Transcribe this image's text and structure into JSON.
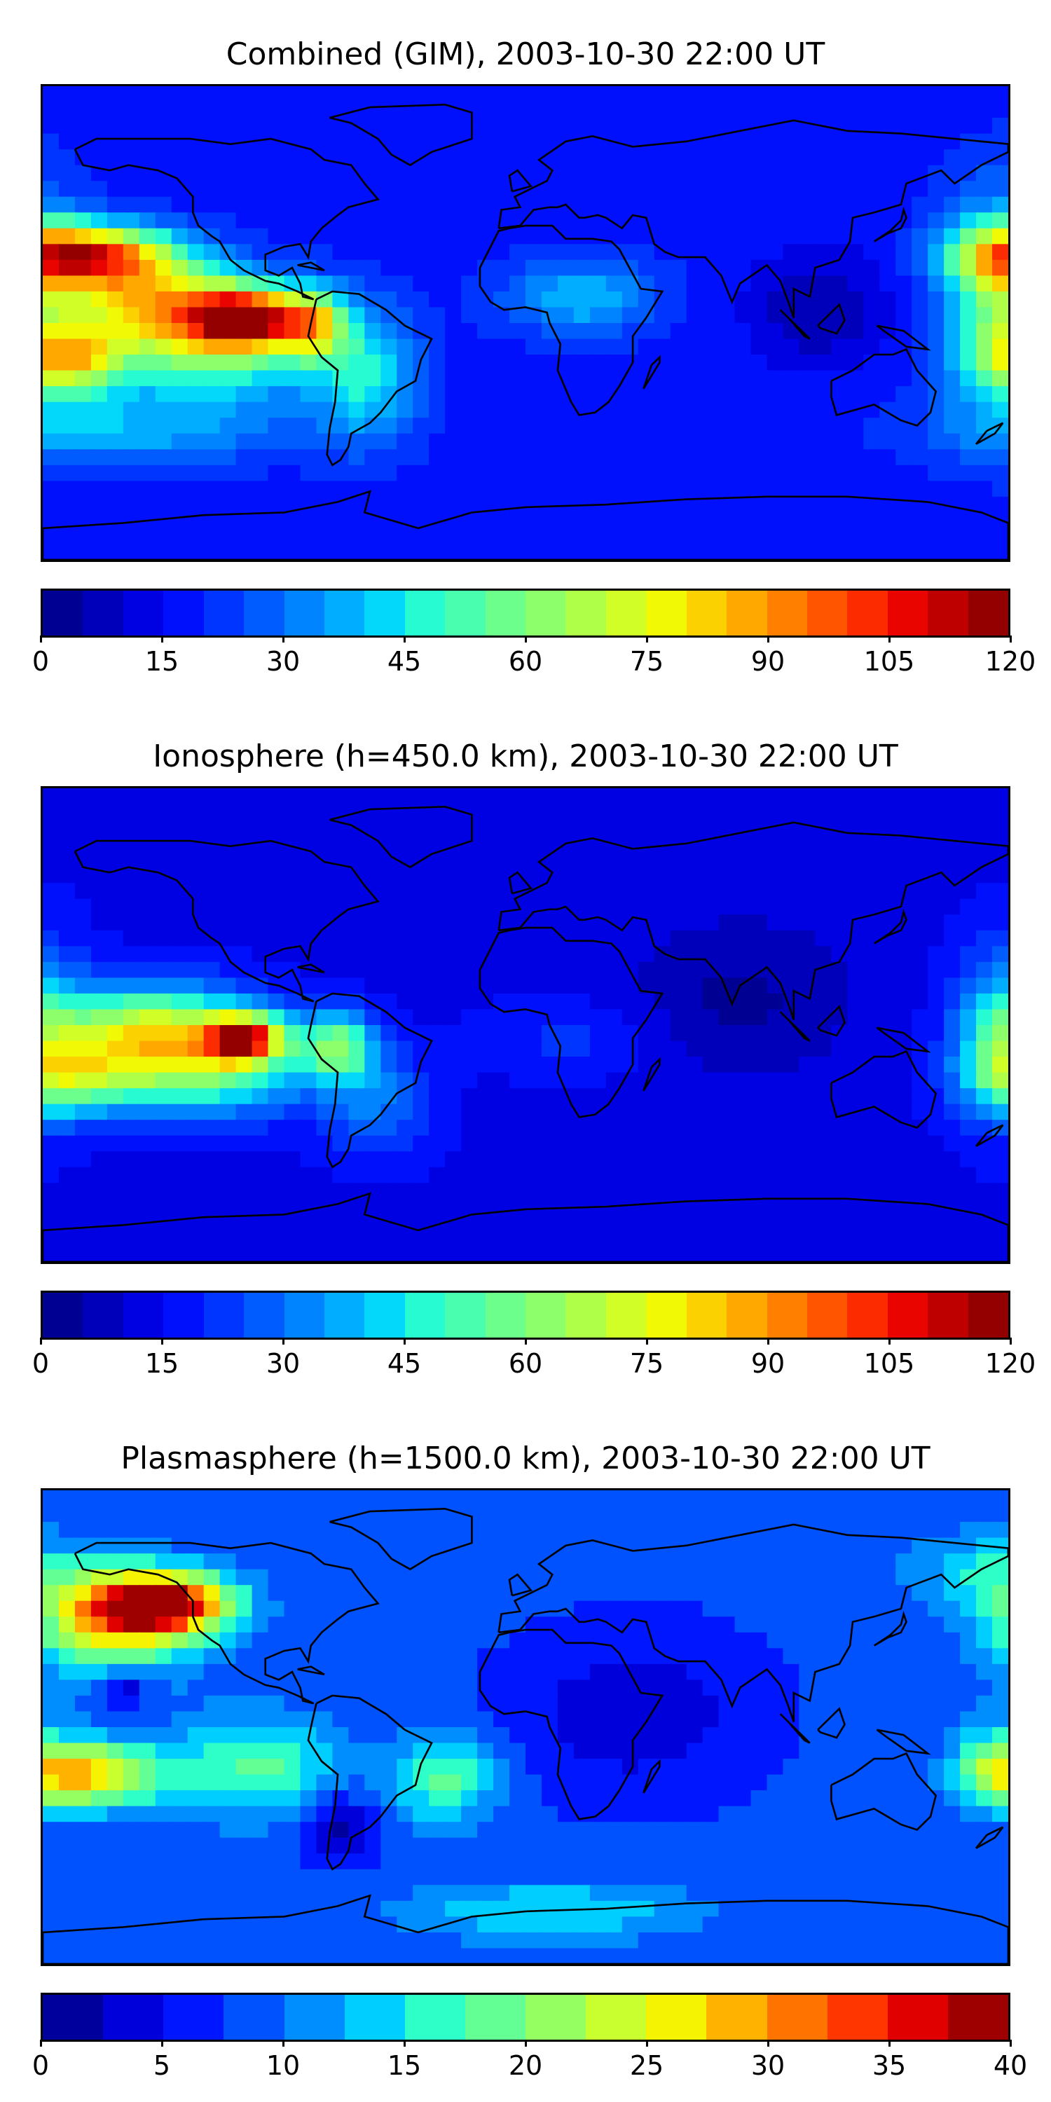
{
  "panels": [
    {
      "title": "Combined (GIM), 2003-10-30 22:00 UT",
      "colorbar": {
        "min": 0,
        "max": 120,
        "levels": 24,
        "ticks": [
          "0",
          "15",
          "30",
          "45",
          "60",
          "75",
          "90",
          "105",
          "120"
        ]
      },
      "field": {
        "background": 18,
        "blobs": [
          {
            "lon": -165,
            "lat": 26,
            "v": 98,
            "sx": 22,
            "sy": 8
          },
          {
            "lon": -140,
            "lat": 8,
            "v": 72,
            "sx": 25,
            "sy": 12
          },
          {
            "lon": -105,
            "lat": 2,
            "v": 95,
            "sx": 12,
            "sy": 7
          },
          {
            "lon": -115,
            "lat": -8,
            "v": 60,
            "sx": 25,
            "sy": 14
          },
          {
            "lon": -170,
            "lat": -14,
            "v": 70,
            "sx": 15,
            "sy": 9
          },
          {
            "lon": -80,
            "lat": 0,
            "v": 70,
            "sx": 9,
            "sy": 9
          },
          {
            "lon": -60,
            "lat": -20,
            "v": 45,
            "sx": 14,
            "sy": 18
          },
          {
            "lon": -150,
            "lat": -40,
            "v": 38,
            "sx": 40,
            "sy": 10
          },
          {
            "lon": 175,
            "lat": 10,
            "v": 48,
            "sx": 14,
            "sy": 28
          },
          {
            "lon": 110,
            "lat": 5,
            "v": 5,
            "sx": 18,
            "sy": 15
          },
          {
            "lon": 20,
            "lat": 10,
            "v": 40,
            "sx": 20,
            "sy": 10
          }
        ]
      }
    },
    {
      "title": "Ionosphere  (h=450.0 km), 2003-10-30 22:00 UT",
      "colorbar": {
        "min": 0,
        "max": 120,
        "levels": 24,
        "ticks": [
          "0",
          "15",
          "30",
          "45",
          "60",
          "75",
          "90",
          "105",
          "120"
        ]
      },
      "field": {
        "background": 14,
        "blobs": [
          {
            "lon": -140,
            "lat": -2,
            "v": 68,
            "sx": 26,
            "sy": 12
          },
          {
            "lon": -105,
            "lat": -5,
            "v": 95,
            "sx": 10,
            "sy": 6
          },
          {
            "lon": -120,
            "lat": -18,
            "v": 50,
            "sx": 28,
            "sy": 12
          },
          {
            "lon": -170,
            "lat": -20,
            "v": 50,
            "sx": 18,
            "sy": 10
          },
          {
            "lon": -70,
            "lat": -8,
            "v": 55,
            "sx": 10,
            "sy": 9
          },
          {
            "lon": -55,
            "lat": -30,
            "v": 30,
            "sx": 14,
            "sy": 14
          },
          {
            "lon": 178,
            "lat": -2,
            "v": 42,
            "sx": 12,
            "sy": 22
          },
          {
            "lon": 20,
            "lat": -5,
            "v": 22,
            "sx": 22,
            "sy": 10
          },
          {
            "lon": 80,
            "lat": 10,
            "v": 4,
            "sx": 30,
            "sy": 22
          }
        ]
      }
    },
    {
      "title": "Plasmasphere (h=1500.0 km), 2003-10-30 22:00 UT",
      "colorbar": {
        "min": 0,
        "max": 40,
        "levels": 16,
        "ticks": [
          "0",
          "5",
          "10",
          "15",
          "20",
          "25",
          "30",
          "35",
          "40"
        ]
      },
      "field": {
        "background": 8,
        "blobs": [
          {
            "lon": -135,
            "lat": 47,
            "v": 36,
            "sx": 18,
            "sy": 8
          },
          {
            "lon": -155,
            "lat": 40,
            "v": 25,
            "sx": 22,
            "sy": 14
          },
          {
            "lon": -165,
            "lat": -18,
            "v": 28,
            "sx": 20,
            "sy": 9
          },
          {
            "lon": -150,
            "lat": 15,
            "v": 1,
            "sx": 7,
            "sy": 7
          },
          {
            "lon": -70,
            "lat": -38,
            "v": 1,
            "sx": 10,
            "sy": 9
          },
          {
            "lon": -30,
            "lat": -20,
            "v": 18,
            "sx": 14,
            "sy": 12
          },
          {
            "lon": -100,
            "lat": -15,
            "v": 18,
            "sx": 22,
            "sy": 14
          },
          {
            "lon": 10,
            "lat": -70,
            "v": 15,
            "sx": 40,
            "sy": 8
          },
          {
            "lon": 175,
            "lat": -12,
            "v": 14,
            "sx": 10,
            "sy": 14
          },
          {
            "lon": 170,
            "lat": 60,
            "v": 14,
            "sx": 20,
            "sy": 10
          },
          {
            "lon": 40,
            "lat": 5,
            "v": 3,
            "sx": 30,
            "sy": 20
          }
        ]
      }
    }
  ],
  "colormap": [
    "#00007f",
    "#0000ad",
    "#0000e0",
    "#0010ff",
    "#0040ff",
    "#0070ff",
    "#00a0ff",
    "#00d4ff",
    "#29ffce",
    "#53ffa4",
    "#7dff7a",
    "#a4ff53",
    "#ceff29",
    "#f4f802",
    "#ffc400",
    "#ff9400",
    "#ff6100",
    "#ff3000",
    "#e80000",
    "#b10000",
    "#7f0000"
  ]
}
